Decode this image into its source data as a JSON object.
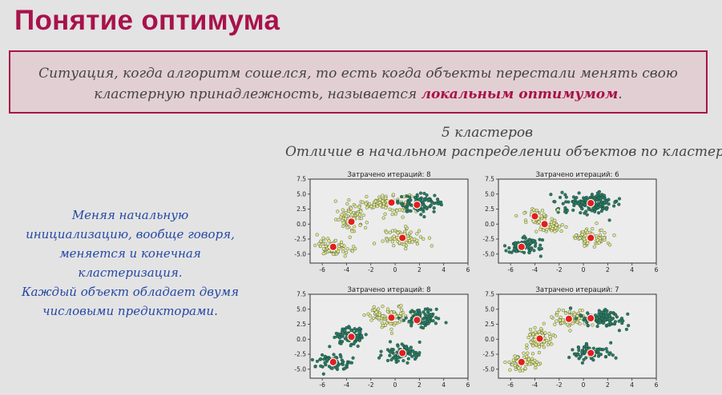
{
  "slide": {
    "title": "Понятие оптимума",
    "definition": {
      "text": "Ситуация, когда алгоритм сошелся, то есть когда объекты перестали менять свою кластерную принадлежность, называется ",
      "highlight": "локальным оптимумом",
      "suffix": "."
    },
    "caption_line1": "5 кластеров",
    "caption_line2": "Отличие в начальном распределении объектов по кластерам",
    "side_note": {
      "line1": "Меняя начальную",
      "line2": "инициализацию, вообще говоря,",
      "line3": "меняется и конечная",
      "line4": "кластеризация.",
      "line5": "Каждый объект обладает двумя",
      "line6": "числовыми предикторами."
    }
  },
  "colors": {
    "accent": "#a8124a",
    "dark_cluster": "#2a7a62",
    "light_cluster": "#e6e58a",
    "centroid": "#e21f1f",
    "side_note": "#2447a6"
  },
  "chart_data": [
    {
      "type": "scatter",
      "title": "Затрачено итераций: 8",
      "xlim": [
        -7,
        6
      ],
      "ylim": [
        -6.5,
        7.5
      ],
      "xticks": [
        "-6",
        "-4",
        "-2",
        "0",
        "2",
        "4",
        "6"
      ],
      "yticks": [
        "7.5",
        "5.0",
        "2.5",
        "0.0",
        "-2.5",
        "-5.0"
      ],
      "groups": [
        {
          "center": [
            -1,
            3.5
          ],
          "spread": [
            1.8,
            1.4
          ],
          "count": 90,
          "color": "#e6e58a"
        },
        {
          "center": [
            2,
            3.5
          ],
          "spread": [
            1.4,
            1.2
          ],
          "count": 90,
          "color": "#2a7a62"
        },
        {
          "center": [
            -3.6,
            0.8
          ],
          "spread": [
            1.0,
            1.4
          ],
          "count": 70,
          "color": "#e6e58a"
        },
        {
          "center": [
            -5,
            -3.8
          ],
          "spread": [
            1.2,
            1.2
          ],
          "count": 70,
          "color": "#e6e58a"
        },
        {
          "center": [
            0.6,
            -2.3
          ],
          "spread": [
            1.3,
            1.2
          ],
          "count": 70,
          "color": "#e6e58a"
        }
      ],
      "centroids": [
        [
          -0.3,
          3.6
        ],
        [
          1.8,
          3.2
        ],
        [
          -3.6,
          0.4
        ],
        [
          -5.1,
          -3.8
        ],
        [
          0.6,
          -2.3
        ]
      ]
    },
    {
      "type": "scatter",
      "title": "Затрачено итераций: 6",
      "xlim": [
        -7,
        6
      ],
      "ylim": [
        -6.5,
        7.5
      ],
      "xticks": [
        "-6",
        "-4",
        "-2",
        "0",
        "2",
        "4",
        "6"
      ],
      "yticks": [
        "7.5",
        "5.0",
        "2.5",
        "0.0",
        "-2.5",
        "-5.0"
      ],
      "groups": [
        {
          "center": [
            0.6,
            3.5
          ],
          "spread": [
            2.0,
            1.3
          ],
          "count": 150,
          "color": "#2a7a62"
        },
        {
          "center": [
            -3.8,
            1.3
          ],
          "spread": [
            0.9,
            1.0
          ],
          "count": 45,
          "color": "#e6e58a"
        },
        {
          "center": [
            -2.8,
            -0.4
          ],
          "spread": [
            0.9,
            0.9
          ],
          "count": 45,
          "color": "#e6e58a"
        },
        {
          "center": [
            -5,
            -3.8
          ],
          "spread": [
            1.2,
            1.2
          ],
          "count": 70,
          "color": "#2a7a62"
        },
        {
          "center": [
            0.6,
            -2.3
          ],
          "spread": [
            1.3,
            1.2
          ],
          "count": 70,
          "color": "#e6e58a"
        }
      ],
      "centroids": [
        [
          0.6,
          3.5
        ],
        [
          -4,
          1.3
        ],
        [
          -3.2,
          0.0
        ],
        [
          -5.1,
          -3.8
        ],
        [
          0.6,
          -2.3
        ]
      ]
    },
    {
      "type": "scatter",
      "title": "Затрачено итераций: 8",
      "xlim": [
        -7,
        6
      ],
      "ylim": [
        -6.5,
        7.5
      ],
      "xticks": [
        "-6",
        "-4",
        "-2",
        "0",
        "2",
        "4",
        "6"
      ],
      "yticks": [
        "7.5",
        "5.0",
        "2.5",
        "0.0",
        "-2.5",
        "-5.0"
      ],
      "groups": [
        {
          "center": [
            -0.5,
            3.8
          ],
          "spread": [
            1.4,
            1.4
          ],
          "count": 90,
          "color": "#e6e58a"
        },
        {
          "center": [
            2.3,
            3.5
          ],
          "spread": [
            1.2,
            1.2
          ],
          "count": 80,
          "color": "#2a7a62"
        },
        {
          "center": [
            -3.6,
            0.6
          ],
          "spread": [
            1.0,
            1.4
          ],
          "count": 70,
          "color": "#2a7a62"
        },
        {
          "center": [
            -5,
            -3.8
          ],
          "spread": [
            1.2,
            1.2
          ],
          "count": 70,
          "color": "#2a7a62"
        },
        {
          "center": [
            0.6,
            -2.3
          ],
          "spread": [
            1.3,
            1.2
          ],
          "count": 70,
          "color": "#2a7a62"
        }
      ],
      "centroids": [
        [
          -0.3,
          3.6
        ],
        [
          1.8,
          3.2
        ],
        [
          -3.6,
          0.4
        ],
        [
          -5.1,
          -3.8
        ],
        [
          0.6,
          -2.3
        ]
      ]
    },
    {
      "type": "scatter",
      "title": "Затрачено итераций: 7",
      "xlim": [
        -7,
        6
      ],
      "ylim": [
        -6.5,
        7.5
      ],
      "xticks": [
        "-6",
        "-4",
        "-2",
        "0",
        "2",
        "4",
        "6"
      ],
      "yticks": [
        "7.5",
        "5.0",
        "2.5",
        "0.0",
        "-2.5",
        "-5.0"
      ],
      "groups": [
        {
          "center": [
            -1,
            3.5
          ],
          "spread": [
            1.2,
            1.3
          ],
          "count": 70,
          "color": "#e6e58a"
        },
        {
          "center": [
            1.6,
            3.4
          ],
          "spread": [
            1.5,
            1.3
          ],
          "count": 100,
          "color": "#2a7a62"
        },
        {
          "center": [
            -3.6,
            0.3
          ],
          "spread": [
            1.0,
            1.4
          ],
          "count": 70,
          "color": "#e6e58a"
        },
        {
          "center": [
            -5,
            -3.8
          ],
          "spread": [
            1.2,
            1.2
          ],
          "count": 70,
          "color": "#e6e58a"
        },
        {
          "center": [
            0.6,
            -2.3
          ],
          "spread": [
            1.3,
            1.2
          ],
          "count": 70,
          "color": "#2a7a62"
        }
      ],
      "centroids": [
        [
          -1.2,
          3.4
        ],
        [
          0.6,
          3.5
        ],
        [
          -3.6,
          0.1
        ],
        [
          -5.1,
          -3.8
        ],
        [
          0.6,
          -2.3
        ]
      ]
    }
  ]
}
